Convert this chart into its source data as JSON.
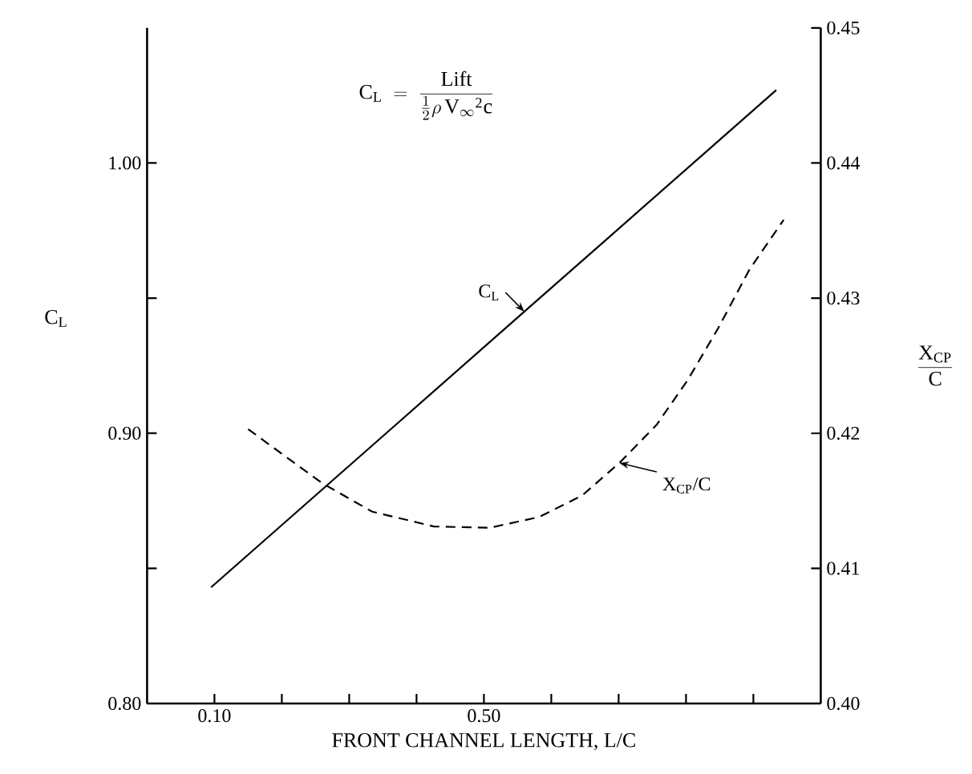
{
  "chart_data": {
    "type": "line",
    "xlabel": "FRONT CHANNEL LENGTH, L/C",
    "ylabel": "C$_{L}$",
    "y2label": "\\frac{\\mathrm{X_{CP}}}{\\mathrm{C}}",
    "annotations": [
      "\\mathrm{C_L}\\ =\\ \\frac{\\mathrm{Lift}}{\\frac{1}{2}\\rho\\,\\mathrm{V_\\infty{}^2 c}}"
    ],
    "xlim": [
      0,
      1.0
    ],
    "xticks": [
      {
        "value": 0.1,
        "label": "0.10"
      },
      {
        "value": 0.2,
        "label": null
      },
      {
        "value": 0.3,
        "label": null
      },
      {
        "value": 0.4,
        "label": null
      },
      {
        "value": 0.5,
        "label": "0.50"
      },
      {
        "value": 0.6,
        "label": null
      },
      {
        "value": 0.7,
        "label": null
      },
      {
        "value": 0.8,
        "label": null
      },
      {
        "value": 0.9,
        "label": null
      }
    ],
    "ylim": [
      0.8,
      1.05
    ],
    "yticks": [
      {
        "value": 0.8,
        "label": "0.80"
      },
      {
        "value": 0.85,
        "label": null
      },
      {
        "value": 0.9,
        "label": "0.90"
      },
      {
        "value": 0.95,
        "label": null
      },
      {
        "value": 1.0,
        "label": "1.00"
      }
    ],
    "y2lim": [
      0.4,
      0.45
    ],
    "y2ticks": [
      {
        "value": 0.4,
        "label": "0.40"
      },
      {
        "value": 0.41,
        "label": "0.41"
      },
      {
        "value": 0.42,
        "label": "0.42"
      },
      {
        "value": 0.43,
        "label": "0.43"
      },
      {
        "value": 0.44,
        "label": "0.44"
      },
      {
        "value": 0.45,
        "label": "0.45"
      }
    ],
    "marker": "none",
    "series": [
      {
        "name": "C$_{L}$",
        "color": "#000000",
        "line_style": "solid",
        "x": [
          0.095,
          0.56,
          0.934
        ],
        "values": [
          0.843,
          0.945,
          1.027
        ]
      },
      {
        "name": "X$_{CP}$/C",
        "color": "#000000",
        "line_style": "dashed",
        "axis": "y2",
        "x": [
          0.15,
          0.26,
          0.334,
          0.426,
          0.508,
          0.582,
          0.646,
          0.701,
          0.756,
          0.802,
          0.848,
          0.894,
          0.945
        ],
        "values": [
          0.4203,
          0.4163,
          0.4142,
          0.4131,
          0.413,
          0.4138,
          0.4154,
          0.4178,
          0.4206,
          0.4239,
          0.4278,
          0.4321,
          0.4358
        ]
      }
    ]
  }
}
